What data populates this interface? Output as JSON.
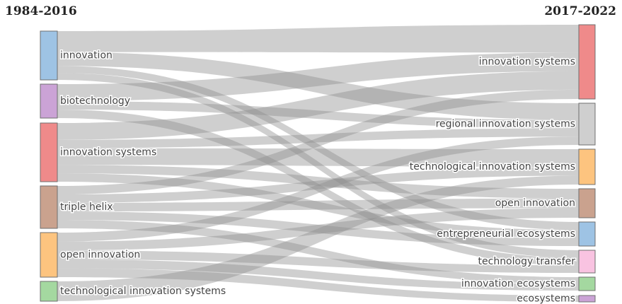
{
  "diagram": {
    "left_title": "1984-2016",
    "right_title": "2017-2022",
    "left_nodes": [
      {
        "id": "L1",
        "label": "innovation",
        "color": "#9ec3e4"
      },
      {
        "id": "L2",
        "label": "biotechnology",
        "color": "#cba3d6"
      },
      {
        "id": "L3",
        "label": "innovation systems",
        "color": "#ef8a8a"
      },
      {
        "id": "L4",
        "label": "triple helix",
        "color": "#caa28e"
      },
      {
        "id": "L5",
        "label": "open innovation",
        "color": "#fdc47f"
      },
      {
        "id": "L6",
        "label": "technological innovation systems",
        "color": "#a4d8a0"
      }
    ],
    "right_nodes": [
      {
        "id": "R1",
        "label": "innovation systems",
        "color": "#ef8a8a"
      },
      {
        "id": "R2",
        "label": "regional innovation systems",
        "color": "#cfcfcf"
      },
      {
        "id": "R3",
        "label": "technological innovation systems",
        "color": "#fdc47f"
      },
      {
        "id": "R4",
        "label": "open innovation",
        "color": "#caa28e"
      },
      {
        "id": "R5",
        "label": "entrepreneurial ecosystems",
        "color": "#9ec3e4"
      },
      {
        "id": "R6",
        "label": "technology transfer",
        "color": "#f9c3e1"
      },
      {
        "id": "R7",
        "label": "innovation ecosystems",
        "color": "#a4d8a0"
      },
      {
        "id": "R8",
        "label": "ecosystems",
        "color": "#cba3d6"
      }
    ],
    "flows": [
      {
        "from": "L1",
        "to": "R1",
        "strength": 3
      },
      {
        "from": "L1",
        "to": "R2",
        "strength": 2
      },
      {
        "from": "L1",
        "to": "R5",
        "strength": 1
      },
      {
        "from": "L1",
        "to": "R6",
        "strength": 1
      },
      {
        "from": "L2",
        "to": "R1",
        "strength": 2
      },
      {
        "from": "L2",
        "to": "R2",
        "strength": 1
      },
      {
        "from": "L2",
        "to": "R6",
        "strength": 1
      },
      {
        "from": "L3",
        "to": "R1",
        "strength": 2
      },
      {
        "from": "L3",
        "to": "R2",
        "strength": 1
      },
      {
        "from": "L3",
        "to": "R3",
        "strength": 2
      },
      {
        "from": "L3",
        "to": "R4",
        "strength": 1
      },
      {
        "from": "L3",
        "to": "R5",
        "strength": 1
      },
      {
        "from": "L4",
        "to": "R1",
        "strength": 1
      },
      {
        "from": "L4",
        "to": "R3",
        "strength": 1
      },
      {
        "from": "L4",
        "to": "R4",
        "strength": 1
      },
      {
        "from": "L4",
        "to": "R5",
        "strength": 1
      },
      {
        "from": "L4",
        "to": "R7",
        "strength": 1
      },
      {
        "from": "L5",
        "to": "R2",
        "strength": 1
      },
      {
        "from": "L5",
        "to": "R4",
        "strength": 1
      },
      {
        "from": "L5",
        "to": "R6",
        "strength": 1
      },
      {
        "from": "L5",
        "to": "R7",
        "strength": 1
      },
      {
        "from": "L5",
        "to": "R8",
        "strength": 1
      },
      {
        "from": "L6",
        "to": "R3",
        "strength": 1
      }
    ]
  }
}
